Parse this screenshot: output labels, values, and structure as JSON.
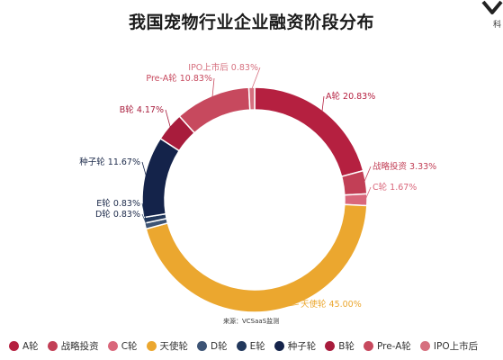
{
  "title": "我国宠物行业企业融资阶段分布",
  "corner_char": "科",
  "source": "来源：VCSaaS监测",
  "chart_data": {
    "type": "pie",
    "donut": true,
    "unit": "%",
    "start_angle_deg": 0,
    "slices": [
      {
        "name": "A轮",
        "value": 20.83,
        "label": "A轮 20.83%",
        "color": "#b52040"
      },
      {
        "name": "战略投资",
        "value": 3.33,
        "label": "战略投资 3.33%",
        "color": "#c23f56"
      },
      {
        "name": "C轮",
        "value": 1.67,
        "label": "C轮 1.67%",
        "color": "#d9677b"
      },
      {
        "name": "天使轮",
        "value": 45.0,
        "label": "天使轮 45.00%",
        "color": "#eba72f"
      },
      {
        "name": "D轮",
        "value": 0.83,
        "label": "D轮 0.83%",
        "color": "#3d5475"
      },
      {
        "name": "E轮",
        "value": 0.83,
        "label": "E轮 0.83%",
        "color": "#22385c"
      },
      {
        "name": "种子轮",
        "value": 11.67,
        "label": "种子轮 11.67%",
        "color": "#14234a"
      },
      {
        "name": "B轮",
        "value": 4.17,
        "label": "B轮 4.17%",
        "color": "#a81c3c"
      },
      {
        "name": "Pre-A轮",
        "value": 10.83,
        "label": "Pre-A轮 10.83%",
        "color": "#c7495e"
      },
      {
        "name": "IPO上市后",
        "value": 0.83,
        "label": "IPO上市后 0.83%",
        "color": "#d6707f"
      }
    ],
    "legend_position": "bottom"
  },
  "legend": [
    {
      "label": "A轮",
      "color": "#b52040"
    },
    {
      "label": "战略投资",
      "color": "#c23f56"
    },
    {
      "label": "C轮",
      "color": "#d9677b"
    },
    {
      "label": "天使轮",
      "color": "#eba72f"
    },
    {
      "label": "D轮",
      "color": "#3d5475"
    },
    {
      "label": "E轮",
      "color": "#22385c"
    },
    {
      "label": "种子轮",
      "color": "#14234a"
    },
    {
      "label": "B轮",
      "color": "#a81c3c"
    },
    {
      "label": "Pre-A轮",
      "color": "#c7495e"
    },
    {
      "label": "IPO上市后",
      "color": "#d6707f"
    }
  ]
}
